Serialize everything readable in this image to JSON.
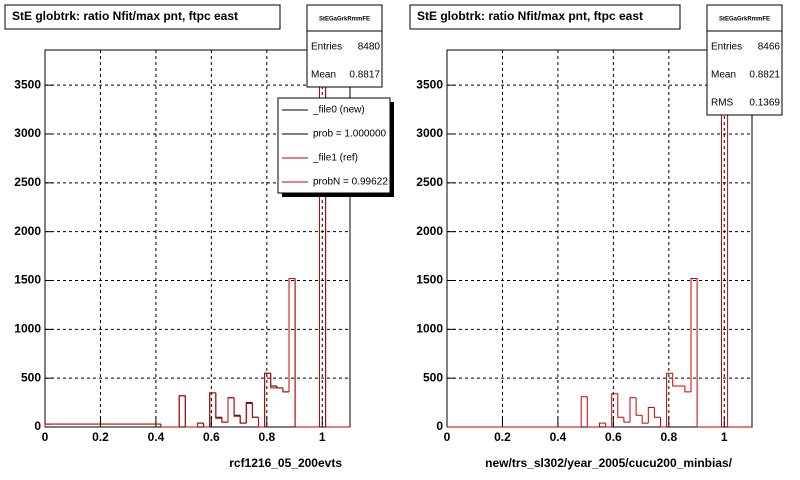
{
  "chart_data": [
    {
      "type": "histogram",
      "title": "StE globtrk: ratio Nfit/max pnt, ftpc east",
      "xlabel": "rcf1216_05_200evts",
      "bins": [
        0,
        0.022,
        0.044,
        0.066,
        0.088,
        0.11,
        0.132,
        0.154,
        0.176,
        0.198,
        0.22,
        0.242,
        0.264,
        0.286,
        0.308,
        0.33,
        0.352,
        0.374,
        0.396,
        0.418,
        0.44,
        0.462,
        0.484,
        0.506,
        0.528,
        0.55,
        0.572,
        0.594,
        0.616,
        0.638,
        0.66,
        0.682,
        0.704,
        0.726,
        0.748,
        0.77,
        0.792,
        0.814,
        0.836,
        0.858,
        0.88,
        0.902,
        0.924,
        0.946,
        0.968,
        0.99,
        1.012,
        1.034,
        1.056,
        1.078,
        1.1
      ],
      "series": [
        {
          "name": "_file0 (new)",
          "note": "prob = 1.000000",
          "color": "#000000",
          "values": [
            30,
            30,
            30,
            30,
            30,
            30,
            30,
            30,
            30,
            30,
            30,
            30,
            30,
            30,
            30,
            30,
            30,
            30,
            30,
            0,
            0,
            0,
            320,
            0,
            0,
            40,
            0,
            350,
            100,
            50,
            300,
            120,
            40,
            250,
            100,
            0,
            550,
            420,
            400,
            360,
            1520,
            0,
            0,
            0,
            0,
            3650,
            0,
            0,
            0,
            0
          ]
        },
        {
          "name": "_file1 (ref)",
          "note": "probN = 0.99622",
          "color": "#cc0000",
          "values": [
            30,
            30,
            30,
            30,
            30,
            30,
            30,
            30,
            30,
            30,
            30,
            30,
            30,
            30,
            30,
            30,
            30,
            30,
            30,
            0,
            0,
            0,
            320,
            0,
            0,
            40,
            0,
            350,
            90,
            50,
            300,
            110,
            40,
            240,
            100,
            0,
            550,
            400,
            400,
            360,
            1520,
            0,
            0,
            0,
            0,
            3650,
            0,
            0,
            0,
            0
          ]
        }
      ],
      "xlim": [
        0,
        1.1
      ],
      "ylim": [
        0,
        3860
      ],
      "xticks": [
        0,
        0.2,
        0.4,
        0.6,
        0.8,
        1
      ],
      "yticks": [
        0,
        500,
        1000,
        1500,
        2000,
        2500,
        3000,
        3500
      ],
      "grid": true,
      "stats": {
        "name": "StEGaGrkRmmFE",
        "rows": [
          {
            "label": "Entries",
            "value": 8480
          },
          {
            "label": "Mean",
            "value": 0.8817
          }
        ]
      }
    },
    {
      "type": "histogram",
      "title": "StE globtrk: ratio Nfit/max pnt, ftpc east",
      "xlabel": "new/trs_sl302/year_2005/cucu200_minbias/",
      "bins": [
        0,
        0.022,
        0.044,
        0.066,
        0.088,
        0.11,
        0.132,
        0.154,
        0.176,
        0.198,
        0.22,
        0.242,
        0.264,
        0.286,
        0.308,
        0.33,
        0.352,
        0.374,
        0.396,
        0.418,
        0.44,
        0.462,
        0.484,
        0.506,
        0.528,
        0.55,
        0.572,
        0.594,
        0.616,
        0.638,
        0.66,
        0.682,
        0.704,
        0.726,
        0.748,
        0.77,
        0.792,
        0.814,
        0.836,
        0.858,
        0.88,
        0.902,
        0.924,
        0.946,
        0.968,
        0.99,
        1.012,
        1.034,
        1.056,
        1.078,
        1.1
      ],
      "series": [
        {
          "color": "#cc0000",
          "values": [
            0,
            0,
            0,
            0,
            0,
            0,
            0,
            0,
            0,
            0,
            0,
            0,
            0,
            0,
            0,
            0,
            0,
            0,
            0,
            0,
            0,
            0,
            310,
            0,
            0,
            40,
            0,
            340,
            100,
            50,
            300,
            120,
            40,
            200,
            100,
            0,
            550,
            420,
            420,
            360,
            1520,
            0,
            0,
            0,
            0,
            3650,
            0,
            0,
            0,
            0
          ]
        }
      ],
      "xlim": [
        0,
        1.1
      ],
      "ylim": [
        0,
        3860
      ],
      "xticks": [
        0,
        0.2,
        0.4,
        0.6,
        0.8,
        1
      ],
      "yticks": [
        0,
        500,
        1000,
        1500,
        2000,
        2500,
        3000,
        3500
      ],
      "grid": true,
      "stats": {
        "name": "StEGaGrkRmmFE",
        "rows": [
          {
            "label": "Entries",
            "value": 8466
          },
          {
            "label": "Mean",
            "value": 0.8821
          },
          {
            "label": "RMS",
            "value": 0.1369
          }
        ]
      }
    }
  ]
}
